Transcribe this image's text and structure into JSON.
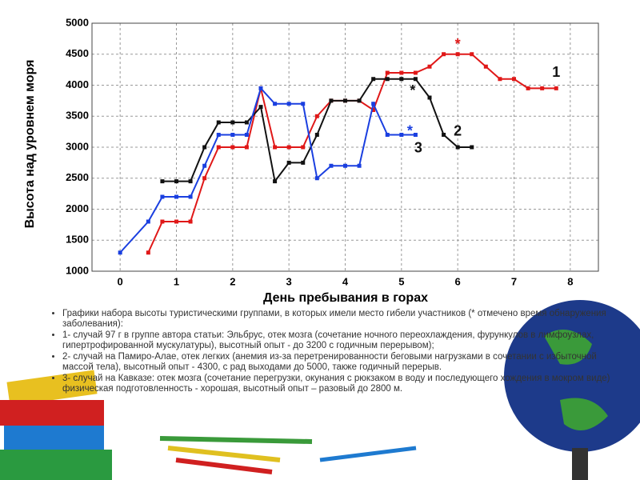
{
  "chart_data": {
    "type": "line",
    "ylabel": "Высота над уровнем моря",
    "xlabel": "День пребывания в горах",
    "xlim": [
      -0.5,
      8.5
    ],
    "xticks": [
      0,
      1,
      2,
      3,
      4,
      5,
      6,
      7,
      8
    ],
    "ylim": [
      1000,
      5000
    ],
    "yticks": [
      1000,
      1500,
      2000,
      2500,
      3000,
      3500,
      4000,
      4500,
      5000
    ],
    "grid": true,
    "series": [
      {
        "name": "1",
        "color": "#e01818",
        "x": [
          0.5,
          0.75,
          1,
          1.25,
          1.5,
          1.75,
          2,
          2.25,
          2.5,
          2.75,
          3,
          3.25,
          3.5,
          3.75,
          4,
          4.25,
          4.5,
          4.75,
          5,
          5.25,
          5.5,
          5.75,
          6,
          6.25,
          6.5,
          6.75,
          7,
          7.25,
          7.5,
          7.75
        ],
        "values": [
          1300,
          1800,
          1800,
          1800,
          2500,
          3000,
          3000,
          3000,
          3950,
          3000,
          3000,
          3000,
          3500,
          3750,
          3750,
          3750,
          3600,
          4200,
          4200,
          4200,
          4300,
          4500,
          4500,
          4500,
          4300,
          4100,
          4100,
          3950,
          3950,
          3950
        ]
      },
      {
        "name": "2",
        "color": "#111111",
        "x": [
          0.75,
          1,
          1.25,
          1.5,
          1.75,
          2,
          2.25,
          2.5,
          2.75,
          3,
          3.25,
          3.5,
          3.75,
          4,
          4.25,
          4.5,
          4.75,
          5,
          5.25,
          5.5,
          5.75,
          6,
          6.25
        ],
        "values": [
          2450,
          2450,
          2450,
          3000,
          3400,
          3400,
          3400,
          3650,
          2450,
          2750,
          2750,
          3200,
          3750,
          3750,
          3750,
          4100,
          4100,
          4100,
          4100,
          3800,
          3200,
          3000,
          3000
        ]
      },
      {
        "name": "3",
        "color": "#1a3fe0",
        "x": [
          0,
          0.5,
          0.75,
          1,
          1.25,
          1.5,
          1.75,
          2,
          2.25,
          2.5,
          2.75,
          3,
          3.25,
          3.5,
          3.75,
          4,
          4.25,
          4.5,
          4.75,
          5,
          5.25
        ],
        "values": [
          1300,
          1800,
          2200,
          2200,
          2200,
          2700,
          3200,
          3200,
          3200,
          3950,
          3700,
          3700,
          3700,
          2500,
          2700,
          2700,
          2700,
          3700,
          3200,
          3200,
          3200
        ]
      }
    ],
    "annotations": [
      {
        "text": "*",
        "x": 6,
        "y": 4650,
        "color": "#e01818"
      },
      {
        "text": "*",
        "x": 5.2,
        "y": 3900,
        "color": "#111111"
      },
      {
        "text": "*",
        "x": 5.15,
        "y": 3250,
        "color": "#1a3fe0"
      },
      {
        "text": "1",
        "x": 7.75,
        "y": 4200,
        "color": "#111111"
      },
      {
        "text": "2",
        "x": 6,
        "y": 3250,
        "color": "#111111"
      },
      {
        "text": "3",
        "x": 5.3,
        "y": 2980,
        "color": "#111111"
      }
    ]
  },
  "notes": [
    "Графики набора высоты туристическими группами, в которых имели место гибели участников (* отмечено время обнаружения заболевания):",
    "1- случай 97 г в группе автора статьи: Эльбрус, отек мозга (сочетание ночного переохлаждения, фурункулов в лимфоузлах, гипертрофированной мускулатуры), высотный опыт - до 3200 с годичным перерывом);",
    "2- случай на Памиро-Алае, отек легких (анемия из-за перетренированности беговыми нагрузками в сочетании с избыточной массой тела), высотный опыт - 4300, с рад выходами до 5000, также годичный перерыв.",
    "3- случай на Кавказе: отек мозга (сочетание перегрузки, окунания с рюкзаком в воду и последующего хождения в мокром виде) физическая подготовленность - хорошая, высотный опыт – разовый до 2800 м."
  ]
}
